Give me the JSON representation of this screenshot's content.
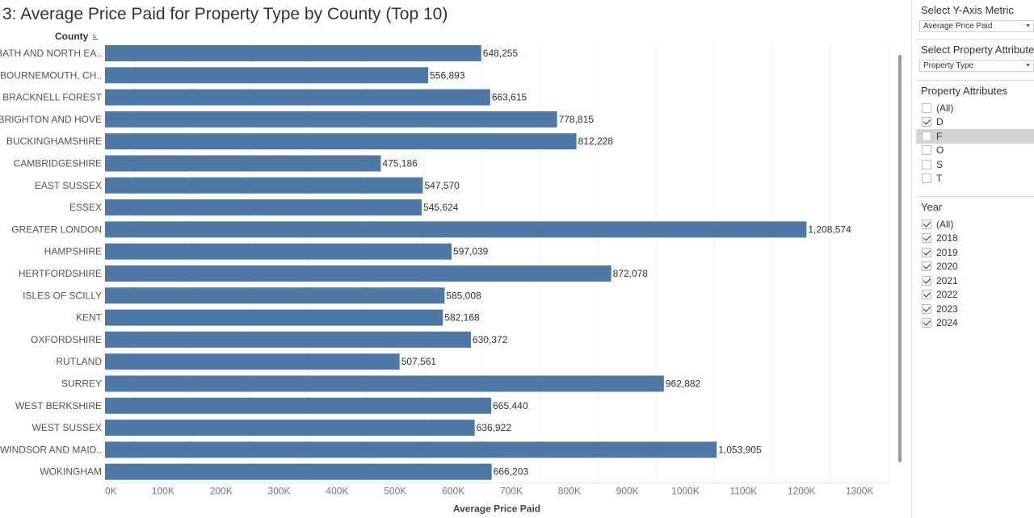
{
  "title": "3: Average Price Paid for Property Type by County (Top 10)",
  "chart_data": {
    "type": "bar",
    "orientation": "horizontal",
    "row_header": "County",
    "categories": [
      "BATH AND NORTH EA..",
      "BOURNEMOUTH, CH..",
      "BRACKNELL FOREST",
      "BRIGHTON AND HOVE",
      "BUCKINGHAMSHIRE",
      "CAMBRIDGESHIRE",
      "EAST SUSSEX",
      "ESSEX",
      "GREATER LONDON",
      "HAMPSHIRE",
      "HERTFORDSHIRE",
      "ISLES OF SCILLY",
      "KENT",
      "OXFORDSHIRE",
      "RUTLAND",
      "SURREY",
      "WEST BERKSHIRE",
      "WEST SUSSEX",
      "WINDSOR AND MAID..",
      "WOKINGHAM"
    ],
    "values": [
      648255,
      556893,
      663615,
      778815,
      812228,
      475186,
      547570,
      545624,
      1208574,
      597039,
      872078,
      585008,
      582168,
      630372,
      507561,
      962882,
      665440,
      636922,
      1053905,
      666203
    ],
    "value_labels": [
      "648,255",
      "556,893",
      "663,615",
      "778,815",
      "812,228",
      "475,186",
      "547,570",
      "545,624",
      "1,208,574",
      "597,039",
      "872,078",
      "585,008",
      "582,168",
      "630,372",
      "507,561",
      "962,882",
      "665,440",
      "636,922",
      "1,053,905",
      "666,203"
    ],
    "xlabel": "Average Price Paid",
    "xticks": [
      0,
      100000,
      200000,
      300000,
      400000,
      500000,
      600000,
      700000,
      800000,
      900000,
      1000000,
      1100000,
      1200000,
      1300000
    ],
    "xtick_labels": [
      "0K",
      "100K",
      "200K",
      "300K",
      "400K",
      "500K",
      "600K",
      "700K",
      "800K",
      "900K",
      "1000K",
      "1100K",
      "1200K",
      "1300K"
    ],
    "xlim": [
      0,
      1350000
    ],
    "bar_color": "#4e79a7",
    "grid": "vertical"
  },
  "sidebar": {
    "y_metric": {
      "title": "Select Y-Axis Metric",
      "value": "Average Price Paid"
    },
    "property_attribute": {
      "title": "Select Property Attribute",
      "value": "Property Type"
    },
    "property_attributes": {
      "title": "Property Attributes",
      "items": [
        {
          "label": "(All)",
          "checked": false
        },
        {
          "label": "D",
          "checked": true
        },
        {
          "label": "F",
          "checked": false
        },
        {
          "label": "O",
          "checked": false
        },
        {
          "label": "S",
          "checked": false
        },
        {
          "label": "T",
          "checked": false
        }
      ]
    },
    "year": {
      "title": "Year",
      "items": [
        {
          "label": "(All)",
          "checked": true
        },
        {
          "label": "2018",
          "checked": true
        },
        {
          "label": "2019",
          "checked": true
        },
        {
          "label": "2020",
          "checked": true
        },
        {
          "label": "2021",
          "checked": true
        },
        {
          "label": "2022",
          "checked": true
        },
        {
          "label": "2023",
          "checked": true
        },
        {
          "label": "2024",
          "checked": true
        }
      ]
    }
  }
}
